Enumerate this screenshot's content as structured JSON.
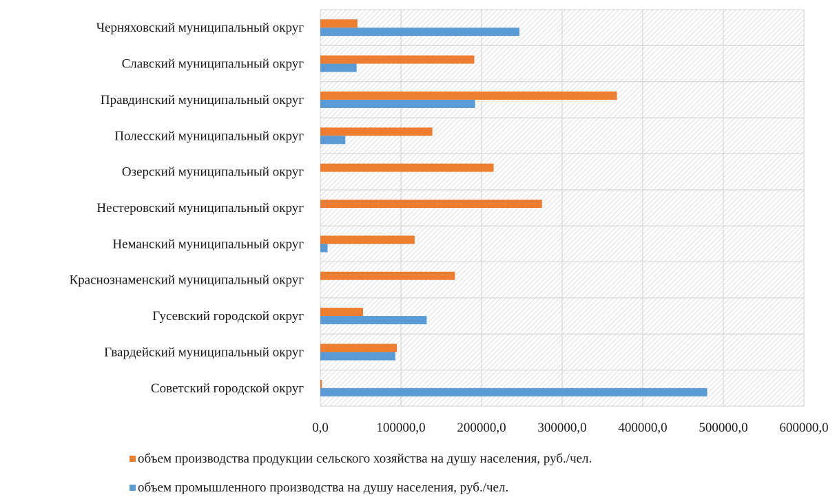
{
  "chart_data": {
    "type": "bar",
    "orientation": "horizontal",
    "categories": [
      "Советский городской округ",
      "Гвардейский муниципальный округ",
      "Гусевский городской округ",
      "Краснознаменский муниципальный округ",
      "Неманский муниципальный округ",
      "Нестеровский муниципальный округ",
      "Озерский муниципальный округ",
      "Полесский муниципальный округ",
      "Правдинский муниципальный округ",
      "Славский муниципальный округ",
      "Черняховский муниципальный округ"
    ],
    "series": [
      {
        "name": "объем  производства продукции сельского хозяйства на душу населения, руб./чел.",
        "color": "#ed7d31",
        "values": [
          2000,
          95000,
          53000,
          167000,
          117000,
          275000,
          215000,
          139000,
          368000,
          191000,
          46000
        ]
      },
      {
        "name": "объем промышленного производства на душу населения, руб./чел.",
        "color": "#5b9bd5",
        "values": [
          480000,
          93000,
          132000,
          0,
          9000,
          0,
          0,
          31000,
          192000,
          45000,
          247000
        ]
      }
    ],
    "xlim": [
      0,
      600000
    ],
    "xticks": [
      0,
      100000,
      200000,
      300000,
      400000,
      500000,
      600000
    ],
    "xtick_labels": [
      "0,0",
      "100000,0",
      "200000,0",
      "300000,0",
      "400000,0",
      "500000,0",
      "600000,0"
    ],
    "title": "",
    "xlabel": "",
    "ylabel": "",
    "grid": true,
    "plot_background": "hatched",
    "legend_position": "bottom"
  }
}
